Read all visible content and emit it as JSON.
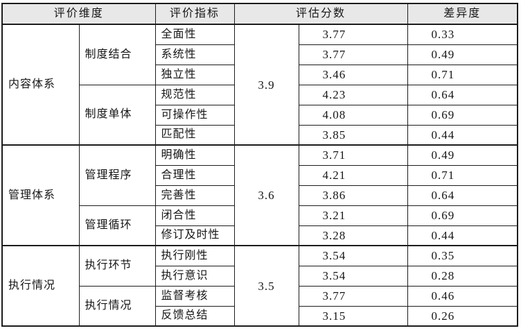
{
  "header": {
    "dimension": "评价维度",
    "indicator": "评价指标",
    "score": "评估分数",
    "difference": "差异度"
  },
  "colors": {
    "header_bg": "#e8e8e8",
    "border": "#1c1c1c",
    "text": "#161616"
  },
  "sections": [
    {
      "dimension": "内容体系",
      "score": "3.9",
      "groups": [
        {
          "name": "制度结合",
          "rows": [
            {
              "indicator": "全面性",
              "score": "3.77",
              "diff": "0.33"
            },
            {
              "indicator": "系统性",
              "score": "3.77",
              "diff": "0.49"
            },
            {
              "indicator": "独立性",
              "score": "3.46",
              "diff": "0.71"
            }
          ]
        },
        {
          "name": "制度单体",
          "rows": [
            {
              "indicator": "规范性",
              "score": "4.23",
              "diff": "0.64"
            },
            {
              "indicator": "可操作性",
              "score": "4.08",
              "diff": "0.69"
            },
            {
              "indicator": "匹配性",
              "score": "3.85",
              "diff": "0.44"
            }
          ]
        }
      ]
    },
    {
      "dimension": "管理体系",
      "score": "3.6",
      "groups": [
        {
          "name": "管理程序",
          "rows": [
            {
              "indicator": "明确性",
              "score": "3.71",
              "diff": "0.49"
            },
            {
              "indicator": "合理性",
              "score": "4.21",
              "diff": "0.71"
            },
            {
              "indicator": "完善性",
              "score": "3.86",
              "diff": "0.64"
            }
          ]
        },
        {
          "name": "管理循环",
          "rows": [
            {
              "indicator": "闭合性",
              "score": "3.21",
              "diff": "0.69"
            },
            {
              "indicator": "修订及时性",
              "score": "3.28",
              "diff": "0.44"
            }
          ]
        }
      ]
    },
    {
      "dimension": "执行情况",
      "score": "3.5",
      "groups": [
        {
          "name": "执行环节",
          "rows": [
            {
              "indicator": "执行刚性",
              "score": "3.54",
              "diff": "0.35"
            },
            {
              "indicator": "执行意识",
              "score": "3.54",
              "diff": "0.28"
            }
          ]
        },
        {
          "name": "执行情况",
          "rows": [
            {
              "indicator": "监督考核",
              "score": "3.77",
              "diff": "0.46"
            },
            {
              "indicator": "反馈总结",
              "score": "3.15",
              "diff": "0.26"
            }
          ]
        }
      ]
    }
  ]
}
